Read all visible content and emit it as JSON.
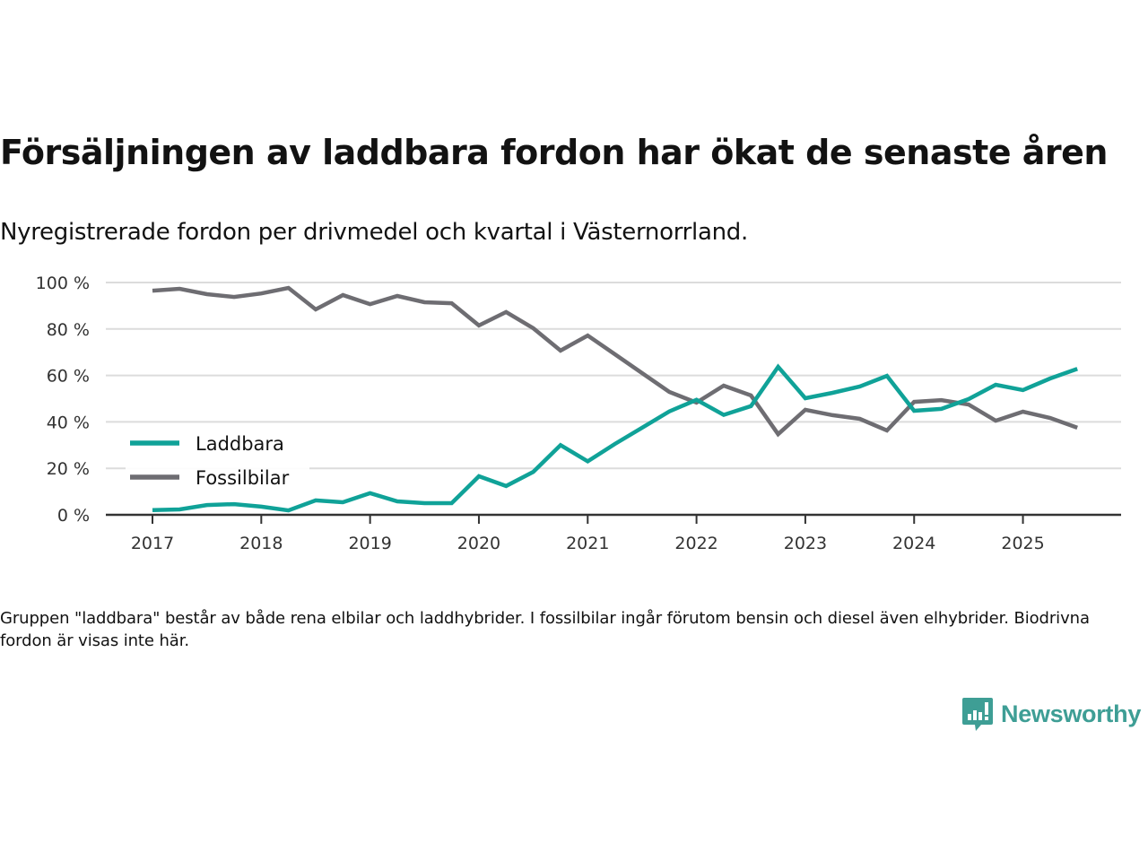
{
  "title": "Försäljningen av laddbara fordon har ökat de senaste åren",
  "subtitle": "Nyregistrerade fordon per drivmedel och kvartal i Västernorrland.",
  "footnote": "Gruppen \"laddbara\" består av både rena elbilar och laddhybrider. I fossilbilar ingår förutom bensin och diesel även elhybrider. Biodrivna fordon är visas inte här.",
  "logo": {
    "text": "Newsworthy",
    "icon": "newsworthy-chart-bubble-icon",
    "color": "#3e9e95"
  },
  "chart_data": {
    "type": "line",
    "title": "Försäljningen av laddbara fordon har ökat de senaste åren",
    "subtitle": "Nyregistrerade fordon per drivmedel och kvartal i Västernorrland.",
    "xlabel": "",
    "ylabel": "",
    "x": [
      "2017Q1",
      "2017Q2",
      "2017Q3",
      "2017Q4",
      "2018Q1",
      "2018Q2",
      "2018Q3",
      "2018Q4",
      "2019Q1",
      "2019Q2",
      "2019Q3",
      "2019Q4",
      "2020Q1",
      "2020Q2",
      "2020Q3",
      "2020Q4",
      "2021Q1",
      "2021Q2",
      "2021Q3",
      "2021Q4",
      "2022Q1",
      "2022Q2",
      "2022Q3",
      "2022Q4",
      "2023Q1",
      "2023Q2",
      "2023Q3",
      "2023Q4",
      "2024Q1",
      "2024Q2",
      "2024Q3",
      "2024Q4",
      "2025Q1",
      "2025Q2",
      "2025Q3"
    ],
    "x_ticks": [
      "2017",
      "2018",
      "2019",
      "2020",
      "2021",
      "2022",
      "2023",
      "2024",
      "2025"
    ],
    "y_ticks": [
      "0 %",
      "20 %",
      "40 %",
      "60 %",
      "80 %",
      "100 %"
    ],
    "ylim": [
      0,
      100
    ],
    "grid": true,
    "legend_position": "left-middle",
    "series": [
      {
        "name": "Laddbara",
        "color": "#10a298",
        "values": [
          2,
          2.3,
          4.2,
          4.6,
          3.5,
          1.9,
          6.2,
          5.4,
          9.3,
          5.8,
          5,
          5,
          16.6,
          12.4,
          18.5,
          30,
          23,
          30.5,
          37.5,
          44.5,
          49.5,
          43,
          46.8,
          63.7,
          50.2,
          52.5,
          55.2,
          59.8,
          44.8,
          45.6,
          49.8,
          56,
          53.7,
          58.7,
          62.8
        ]
      },
      {
        "name": "Fossilbilar",
        "color": "#6e6d72",
        "values": [
          96.5,
          97.3,
          95,
          93.8,
          95.3,
          97.7,
          88.4,
          94.6,
          90.7,
          94.2,
          91.5,
          91.1,
          81.5,
          87.3,
          80.3,
          70.7,
          77.2,
          69.1,
          61,
          52.9,
          48.3,
          55.6,
          51.4,
          34.7,
          45.2,
          42.9,
          41.3,
          36.3,
          48.6,
          49.4,
          47.5,
          40.5,
          44.4,
          41.7,
          37.5
        ]
      }
    ]
  }
}
